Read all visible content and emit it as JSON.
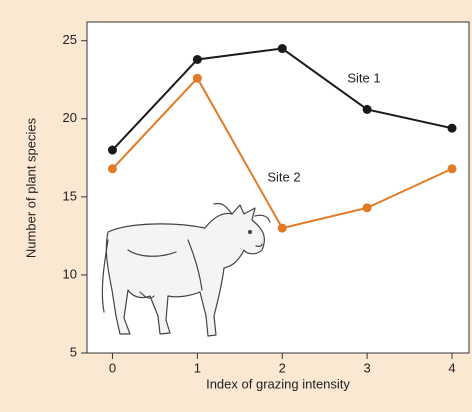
{
  "chart_data": {
    "type": "line",
    "x_label": "Index of grazing intensity",
    "y_label": "Number of plant species",
    "x": [
      0,
      1,
      2,
      3,
      4
    ],
    "xlim": [
      -0.3,
      4.2
    ],
    "xticks": [
      0,
      1,
      2,
      3,
      4
    ],
    "ylim": [
      5,
      26.2
    ],
    "yticks": [
      5,
      10,
      15,
      20,
      25
    ],
    "series": [
      {
        "name": "Site 1",
        "color": "#1a1a1a",
        "values": [
          18.0,
          23.8,
          24.5,
          20.6,
          19.4
        ]
      },
      {
        "name": "Site 2",
        "color": "#e07b24",
        "values": [
          16.8,
          22.6,
          13.0,
          14.3,
          16.8
        ]
      }
    ]
  }
}
